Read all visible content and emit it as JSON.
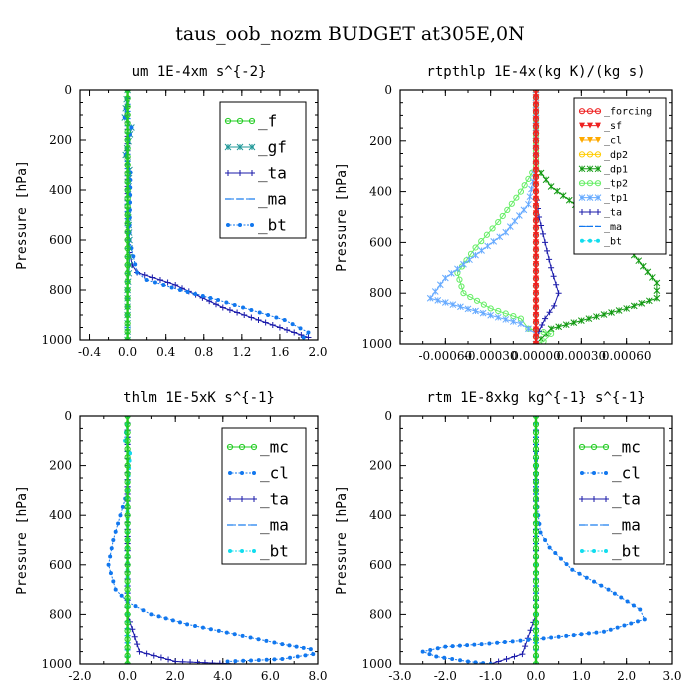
{
  "figure": {
    "title": "taus_oob_nozm  BUDGET at305E,0N"
  },
  "colors": {
    "green": "#22cc22",
    "teal": "#229999",
    "blue": "#1177ee",
    "navy": "#1a1aaa",
    "cyan": "#11ddee",
    "red": "#ee2222",
    "orange": "#ffaa00",
    "yellow": "#ffcc00",
    "darkgreen": "#119911",
    "lightgreen": "#66ee66",
    "lightblue": "#66aaff",
    "gray": "#888888"
  },
  "chart_data": [
    {
      "type": "line",
      "title": "um  1E-4xm s^{-2}",
      "ylabel": "Pressure [hPa]",
      "xlim": [
        -0.5,
        2.0
      ],
      "ylim": [
        1000,
        0
      ],
      "xticks": [
        "-0.4",
        "0.0",
        "0.4",
        "0.8",
        "1.2",
        "1.6",
        "2.0"
      ],
      "yticks": [
        "0",
        "200",
        "400",
        "600",
        "800",
        "1000"
      ],
      "legend": {
        "position": "top-right",
        "entries": [
          "_f",
          "_gf",
          "_ta",
          "_ma",
          "_bt"
        ]
      },
      "series": [
        {
          "name": "_f",
          "x": [
            0,
            0,
            0,
            0,
            0,
            0,
            0,
            0,
            0,
            0,
            0
          ],
          "y": [
            0,
            100,
            200,
            300,
            400,
            500,
            600,
            700,
            800,
            900,
            1000
          ]
        },
        {
          "name": "_gf",
          "x": [
            0,
            -0.03,
            0.04,
            -0.02,
            0.02,
            0,
            0.02,
            0.02,
            0,
            0,
            0
          ],
          "y": [
            0,
            110,
            150,
            260,
            320,
            450,
            600,
            700,
            800,
            900,
            1000
          ]
        },
        {
          "name": "_ta",
          "x": [
            0,
            0,
            0,
            0,
            0.01,
            0.02,
            0.05,
            0.1,
            0.5,
            1.0,
            1.9
          ],
          "y": [
            0,
            100,
            300,
            500,
            600,
            650,
            700,
            730,
            780,
            870,
            990
          ]
        },
        {
          "name": "_ma",
          "x": [
            0,
            0,
            0,
            0,
            0,
            0,
            0,
            0,
            0
          ],
          "y": [
            0,
            200,
            400,
            600,
            700,
            800,
            900,
            950,
            1000
          ]
        },
        {
          "name": "_bt",
          "x": [
            0,
            -0.03,
            0.04,
            -0.02,
            0.03,
            0.02,
            0.1,
            0.2,
            0.55,
            0.95,
            1.3,
            1.65,
            1.9,
            1.85
          ],
          "y": [
            0,
            110,
            150,
            260,
            330,
            600,
            730,
            760,
            800,
            840,
            880,
            920,
            970,
            990
          ]
        }
      ]
    },
    {
      "type": "line",
      "title": "rtpthlp  1E-4x(kg K)/(kg s)",
      "ylabel": "Pressure [hPa]",
      "xlim": [
        -0.0009,
        0.0009
      ],
      "ylim": [
        1000,
        0
      ],
      "xticks": [
        "-0.00060",
        "-0.00030",
        "0.00000",
        "0.00030",
        "0.00060"
      ],
      "yticks": [
        "0",
        "200",
        "400",
        "600",
        "800",
        "1000"
      ],
      "legend": {
        "position": "top-right",
        "entries": [
          "_forcing",
          "_sf",
          "_cl",
          "_dp2",
          "_dp1",
          "_tp2",
          "_tp1",
          "_ta",
          "_ma",
          "_bt"
        ]
      },
      "series": [
        {
          "name": "_forcing",
          "x": [
            0,
            0,
            0,
            0,
            0,
            0
          ],
          "y": [
            0,
            200,
            400,
            600,
            800,
            1000
          ]
        },
        {
          "name": "_sf",
          "x": [
            0,
            0,
            0,
            0,
            0,
            0
          ],
          "y": [
            0,
            200,
            400,
            600,
            800,
            1000
          ]
        },
        {
          "name": "_cl",
          "x": [
            0,
            0,
            0,
            0,
            0,
            0
          ],
          "y": [
            0,
            200,
            400,
            600,
            800,
            1000
          ]
        },
        {
          "name": "_dp2",
          "x": [
            0,
            0,
            0,
            0,
            0,
            0
          ],
          "y": [
            0,
            200,
            400,
            600,
            800,
            1000
          ]
        },
        {
          "name": "_dp1",
          "x": [
            0,
            0,
            0.0001,
            0.0003,
            0.0005,
            0.00065,
            0.0008,
            0.0008,
            0.0006,
            0.00035,
            0.0001,
            0
          ],
          "y": [
            0,
            300,
            380,
            470,
            560,
            650,
            760,
            820,
            860,
            900,
            940,
            1000
          ]
        },
        {
          "name": "_tp2",
          "x": [
            0,
            0,
            -0.0001,
            -0.00025,
            -0.0004,
            -0.00052,
            -0.00048,
            -0.0003,
            -0.0001,
            -5e-05,
            0.0001,
            5e-05,
            0
          ],
          "y": [
            0,
            300,
            400,
            520,
            620,
            720,
            800,
            860,
            900,
            940,
            960,
            990,
            1000
          ]
        },
        {
          "name": "_tp1",
          "x": [
            0,
            0,
            -5e-05,
            -0.0002,
            -0.0004,
            -0.0006,
            -0.0007,
            -0.0004,
            -0.0001,
            0,
            0
          ],
          "y": [
            0,
            300,
            450,
            560,
            650,
            740,
            820,
            870,
            920,
            960,
            1000
          ]
        },
        {
          "name": "_ta",
          "x": [
            0,
            0,
            2e-05,
            6e-05,
            0.0001,
            0.00015,
            0.00012,
            6e-05,
            2e-05,
            0
          ],
          "y": [
            0,
            400,
            500,
            600,
            700,
            800,
            850,
            900,
            950,
            1000
          ]
        },
        {
          "name": "_ma",
          "x": [
            0,
            0,
            0,
            0,
            0,
            0
          ],
          "y": [
            0,
            200,
            400,
            600,
            800,
            1000
          ]
        },
        {
          "name": "_bt",
          "x": [
            0,
            0,
            0,
            0,
            0,
            0
          ],
          "y": [
            0,
            200,
            400,
            600,
            800,
            1000
          ]
        }
      ]
    },
    {
      "type": "line",
      "title": "thlm  1E-5xK s^{-1}",
      "ylabel": "Pressure [hPa]",
      "xlim": [
        -2.0,
        8.0
      ],
      "ylim": [
        1000,
        0
      ],
      "xticks": [
        "-2.0",
        "0.0",
        "2.0",
        "4.0",
        "6.0",
        "8.0"
      ],
      "yticks": [
        "0",
        "200",
        "400",
        "600",
        "800",
        "1000"
      ],
      "legend": {
        "position": "top-right",
        "entries": [
          "_mc",
          "_cl",
          "_ta",
          "_ma",
          "_bt"
        ]
      },
      "series": [
        {
          "name": "_mc",
          "x": [
            0,
            0,
            0,
            0,
            0,
            0,
            0,
            0,
            0,
            0,
            0
          ],
          "y": [
            0,
            100,
            200,
            300,
            400,
            500,
            600,
            700,
            800,
            900,
            1000
          ]
        },
        {
          "name": "_cl",
          "x": [
            0,
            -0.1,
            0.1,
            0,
            -0.3,
            -0.6,
            -0.8,
            -0.5,
            0,
            1.0,
            2.5,
            4.5,
            6.5,
            7.7,
            7.8,
            6.5,
            4.2
          ],
          "y": [
            0,
            100,
            150,
            300,
            400,
            500,
            600,
            700,
            750,
            800,
            840,
            880,
            920,
            940,
            960,
            980,
            990
          ]
        },
        {
          "name": "_ta",
          "x": [
            0,
            0,
            0,
            0,
            0,
            0.5,
            2.0,
            4.5
          ],
          "y": [
            0,
            200,
            400,
            600,
            800,
            950,
            990,
            1000
          ]
        },
        {
          "name": "_ma",
          "x": [
            0,
            0,
            0,
            0,
            0,
            0
          ],
          "y": [
            0,
            200,
            400,
            600,
            800,
            1000
          ]
        },
        {
          "name": "_bt",
          "x": [
            0,
            -0.1,
            0.1,
            0,
            0,
            0,
            0
          ],
          "y": [
            0,
            100,
            150,
            300,
            500,
            800,
            1000
          ]
        }
      ]
    },
    {
      "type": "line",
      "title": "rtm  1E-8xkg kg^{-1} s^{-1}",
      "ylabel": "Pressure [hPa]",
      "xlim": [
        -3.0,
        3.0
      ],
      "ylim": [
        1000,
        0
      ],
      "xticks": [
        "-3.0",
        "-2.0",
        "-1.0",
        "0.0",
        "1.0",
        "2.0",
        "3.0"
      ],
      "yticks": [
        "0",
        "200",
        "400",
        "600",
        "800",
        "1000"
      ],
      "legend": {
        "position": "top-right",
        "entries": [
          "_mc",
          "_cl",
          "_ta",
          "_ma",
          "_bt"
        ]
      },
      "series": [
        {
          "name": "_mc",
          "x": [
            0,
            0,
            0,
            0,
            0,
            0,
            0,
            0,
            0,
            0,
            0
          ],
          "y": [
            0,
            100,
            200,
            300,
            400,
            500,
            600,
            700,
            800,
            900,
            1000
          ]
        },
        {
          "name": "_cl",
          "x": [
            0,
            0,
            0.05,
            0.1,
            0.3,
            0.8,
            1.6,
            2.3,
            2.4,
            1.5,
            0,
            -1.2,
            -2.0,
            -2.5,
            -2.2,
            -1.5,
            -1.0
          ],
          "y": [
            0,
            300,
            400,
            470,
            530,
            620,
            700,
            780,
            820,
            870,
            900,
            920,
            930,
            950,
            970,
            990,
            1000
          ]
        },
        {
          "name": "_ta",
          "x": [
            0,
            0,
            0,
            0,
            0,
            -0.3,
            -1.0
          ],
          "y": [
            0,
            200,
            400,
            600,
            800,
            960,
            1000
          ]
        },
        {
          "name": "_ma",
          "x": [
            0,
            0,
            0,
            0,
            0,
            0
          ],
          "y": [
            0,
            200,
            400,
            600,
            800,
            1000
          ]
        },
        {
          "name": "_bt",
          "x": [
            0,
            0,
            0,
            0,
            0,
            0
          ],
          "y": [
            0,
            200,
            400,
            600,
            800,
            1000
          ]
        }
      ]
    }
  ]
}
